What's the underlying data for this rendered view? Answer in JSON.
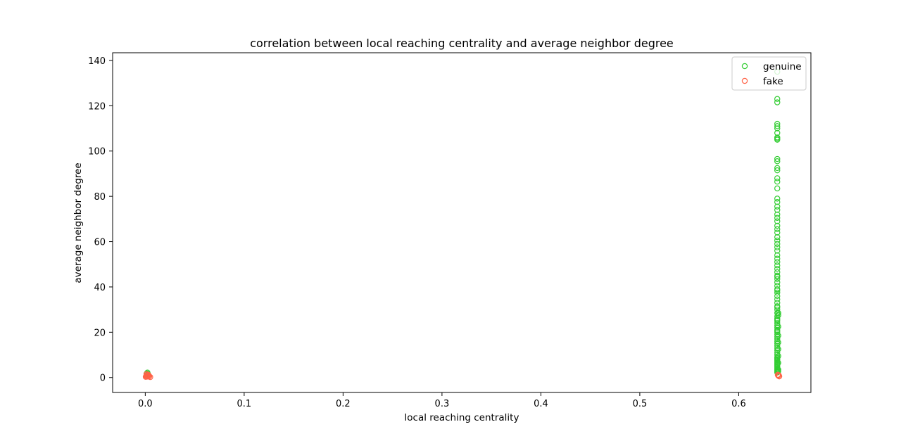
{
  "chart_data": {
    "type": "scatter",
    "title": "correlation between local reaching centrality and average neighbor degree",
    "xlabel": "local reaching centrality",
    "ylabel": "average neighbor degree",
    "xlim": [
      -0.033,
      0.673
    ],
    "ylim": [
      -6.6,
      143.4
    ],
    "xticks": [
      0.0,
      0.1,
      0.2,
      0.3,
      0.4,
      0.5,
      0.6
    ],
    "xtick_labels": [
      "0.0",
      "0.1",
      "0.2",
      "0.3",
      "0.4",
      "0.5",
      "0.6"
    ],
    "yticks": [
      0,
      20,
      40,
      60,
      80,
      100,
      120,
      140
    ],
    "ytick_labels": [
      "0",
      "20",
      "40",
      "60",
      "80",
      "100",
      "120",
      "140"
    ],
    "grid": false,
    "legend_position": "top-right",
    "marker": "hollow-circle",
    "series": [
      {
        "name": "genuine",
        "color": "#32cd32",
        "x": [
          0.0015,
          0.0022,
          0.0028,
          0.0012,
          0.639,
          0.639,
          0.639,
          0.639,
          0.639,
          0.639,
          0.639,
          0.639,
          0.639,
          0.639,
          0.639,
          0.639,
          0.639,
          0.639,
          0.639,
          0.639,
          0.639,
          0.639,
          0.639,
          0.639,
          0.639,
          0.639,
          0.639,
          0.639,
          0.639,
          0.639,
          0.639,
          0.639,
          0.639,
          0.639,
          0.639,
          0.639,
          0.639,
          0.639,
          0.639,
          0.639,
          0.639,
          0.639,
          0.639,
          0.639,
          0.639,
          0.639,
          0.639,
          0.639,
          0.639,
          0.639,
          0.639,
          0.639,
          0.639,
          0.639,
          0.639,
          0.639,
          0.639,
          0.639,
          0.639,
          0.639,
          0.639,
          0.639,
          0.639,
          0.639,
          0.639,
          0.639,
          0.639,
          0.639,
          0.639,
          0.639,
          0.639,
          0.639,
          0.639,
          0.639,
          0.639,
          0.639,
          0.639,
          0.639,
          0.639,
          0.639,
          0.639,
          0.639,
          0.639,
          0.639,
          0.639,
          0.639,
          0.639,
          0.639,
          0.639,
          0.639,
          0.639,
          0.639,
          0.64,
          0.64,
          0.64,
          0.64,
          0.64,
          0.64,
          0.64,
          0.64,
          0.64,
          0.64
        ],
        "y": [
          1.8,
          2.2,
          1.5,
          1.0,
          135,
          123,
          121.5,
          112,
          111,
          110,
          108,
          106,
          105.5,
          105,
          96.5,
          95.5,
          92.5,
          91.5,
          88,
          86.5,
          83.5,
          79,
          77.5,
          75.5,
          74,
          72,
          70.5,
          69,
          67,
          65.5,
          64,
          62,
          60.5,
          59,
          57.5,
          56,
          54,
          52.5,
          51,
          49.5,
          48,
          46.5,
          45,
          43.5,
          42,
          40.5,
          39,
          37.5,
          36,
          34.5,
          33,
          31.5,
          30,
          28.5,
          27,
          26,
          25,
          24,
          23,
          22,
          21,
          20,
          19,
          18,
          17,
          16,
          15,
          14,
          13,
          12,
          11,
          10,
          9,
          8.5,
          8,
          7.5,
          7,
          6.5,
          6,
          5.5,
          5,
          4.5,
          4,
          3.5,
          3,
          2.5,
          2.2,
          20.5,
          25.5,
          31,
          38.5,
          44.5,
          28.5,
          27.5,
          22.5,
          18.5,
          15.5,
          12.5,
          9.5,
          6.5,
          3.5,
          2.8
        ]
      },
      {
        "name": "fake",
        "color": "#ff6347",
        "x": [
          0.0005,
          0.001,
          0.0015,
          0.002,
          0.0025,
          0.003,
          0.004,
          0.005,
          0.0012,
          0.0035,
          0.6395,
          0.64,
          0.6405,
          0.641
        ],
        "y": [
          0.3,
          0.6,
          1.0,
          0.4,
          0.8,
          1.2,
          0.5,
          0.2,
          1.5,
          0.9,
          1.2,
          0.8,
          1.0,
          0.5
        ]
      }
    ]
  }
}
